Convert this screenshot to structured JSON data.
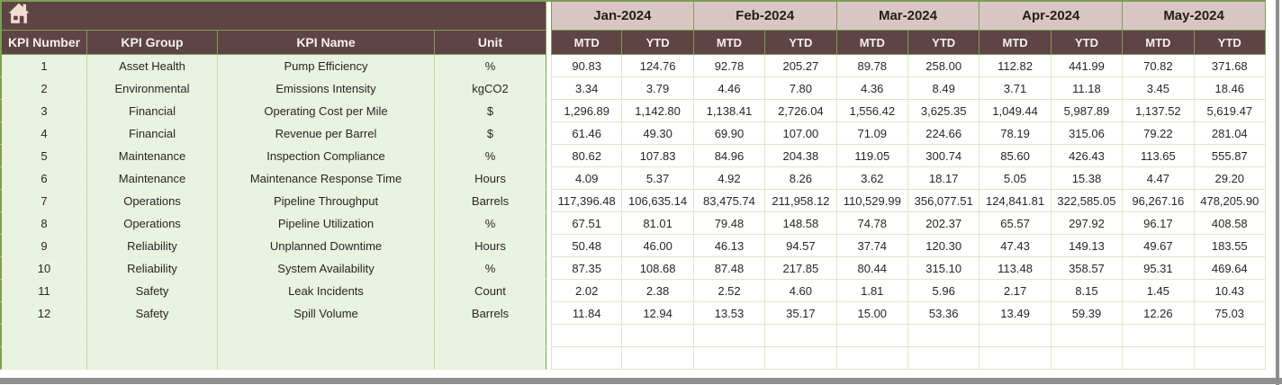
{
  "colors": {
    "brown": "#5e4444",
    "pink": "#d9c6c4",
    "leaf": "#eaf3df",
    "olive": "#7e9d58",
    "grid": "#d9e9c7",
    "gray_edge": "#8f8f8f",
    "home_icon": "#f2ddd3"
  },
  "table": {
    "corner_icon": "home-icon",
    "left_headers": [
      "KPI Number",
      "KPI Group",
      "KPI Name",
      "Unit"
    ],
    "months": [
      "Jan-2024",
      "Feb-2024",
      "Mar-2024",
      "Apr-2024",
      "May-2024"
    ],
    "period_labels": [
      "MTD",
      "YTD"
    ],
    "rows": [
      {
        "number": "1",
        "group": "Asset Health",
        "name": "Pump Efficiency",
        "unit": "%",
        "values": [
          "90.83",
          "124.76",
          "92.78",
          "205.27",
          "89.78",
          "258.00",
          "112.82",
          "441.99",
          "70.82",
          "371.68"
        ]
      },
      {
        "number": "2",
        "group": "Environmental",
        "name": "Emissions Intensity",
        "unit": "kgCO2",
        "values": [
          "3.34",
          "3.79",
          "4.46",
          "7.80",
          "4.36",
          "8.49",
          "3.71",
          "11.18",
          "3.45",
          "18.46"
        ]
      },
      {
        "number": "3",
        "group": "Financial",
        "name": "Operating Cost per Mile",
        "unit": "$",
        "values": [
          "1,296.89",
          "1,142.80",
          "1,138.41",
          "2,726.04",
          "1,556.42",
          "3,625.35",
          "1,049.44",
          "5,987.89",
          "1,137.52",
          "5,619.47"
        ]
      },
      {
        "number": "4",
        "group": "Financial",
        "name": "Revenue per Barrel",
        "unit": "$",
        "values": [
          "61.46",
          "49.30",
          "69.90",
          "107.00",
          "71.09",
          "224.66",
          "78.19",
          "315.06",
          "79.22",
          "281.04"
        ]
      },
      {
        "number": "5",
        "group": "Maintenance",
        "name": "Inspection Compliance",
        "unit": "%",
        "values": [
          "80.62",
          "107.83",
          "84.96",
          "204.38",
          "119.05",
          "300.74",
          "85.60",
          "426.43",
          "113.65",
          "555.87"
        ]
      },
      {
        "number": "6",
        "group": "Maintenance",
        "name": "Maintenance Response Time",
        "unit": "Hours",
        "values": [
          "4.09",
          "5.37",
          "4.92",
          "8.26",
          "3.62",
          "18.17",
          "5.05",
          "15.38",
          "4.47",
          "29.20"
        ]
      },
      {
        "number": "7",
        "group": "Operations",
        "name": "Pipeline Throughput",
        "unit": "Barrels",
        "values": [
          "117,396.48",
          "106,635.14",
          "83,475.74",
          "211,958.12",
          "110,529.99",
          "356,077.51",
          "124,841.81",
          "322,585.05",
          "96,267.16",
          "478,205.90"
        ]
      },
      {
        "number": "8",
        "group": "Operations",
        "name": "Pipeline Utilization",
        "unit": "%",
        "values": [
          "67.51",
          "81.01",
          "79.48",
          "148.58",
          "74.78",
          "202.37",
          "65.57",
          "297.92",
          "96.17",
          "408.58"
        ]
      },
      {
        "number": "9",
        "group": "Reliability",
        "name": "Unplanned Downtime",
        "unit": "Hours",
        "values": [
          "50.48",
          "46.00",
          "46.13",
          "94.57",
          "37.74",
          "120.30",
          "47.43",
          "149.13",
          "49.67",
          "183.55"
        ]
      },
      {
        "number": "10",
        "group": "Reliability",
        "name": "System Availability",
        "unit": "%",
        "values": [
          "87.35",
          "108.68",
          "87.48",
          "217.85",
          "80.44",
          "315.10",
          "113.48",
          "358.57",
          "95.31",
          "469.64"
        ]
      },
      {
        "number": "11",
        "group": "Safety",
        "name": "Leak Incidents",
        "unit": "Count",
        "values": [
          "2.02",
          "2.38",
          "2.52",
          "4.60",
          "1.81",
          "5.96",
          "2.17",
          "8.15",
          "1.45",
          "10.43"
        ]
      },
      {
        "number": "12",
        "group": "Safety",
        "name": "Spill Volume",
        "unit": "Barrels",
        "values": [
          "11.84",
          "12.94",
          "13.53",
          "35.17",
          "15.00",
          "53.36",
          "13.49",
          "59.39",
          "12.26",
          "75.03"
        ]
      }
    ],
    "empty_row_count": 2
  }
}
